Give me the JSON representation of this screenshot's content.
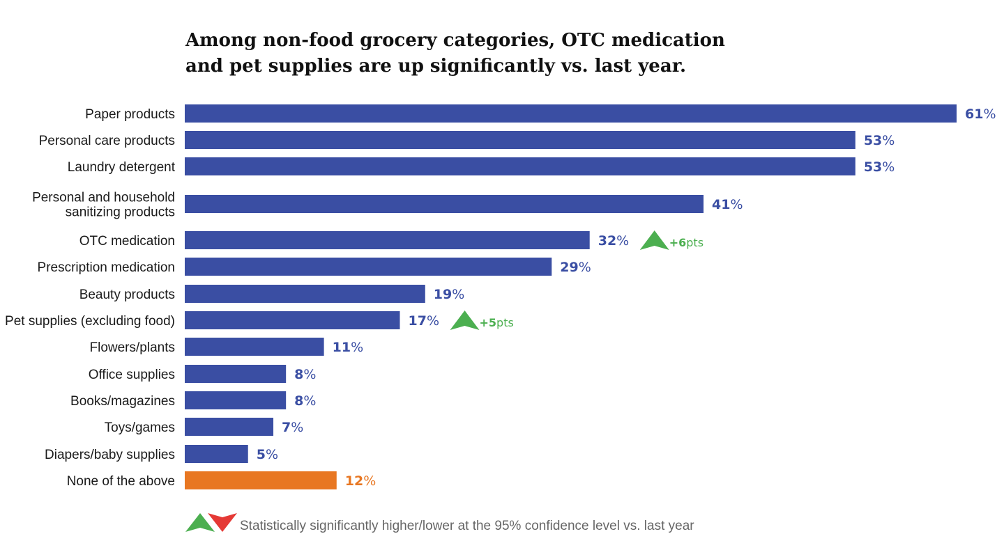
{
  "chart_data": {
    "type": "bar",
    "orientation": "horizontal",
    "title_lines": [
      "Among non-food grocery categories, OTC medication",
      "and pet supplies are up significantly vs. last year."
    ],
    "unit": "%",
    "xlim": [
      0,
      61
    ],
    "categories": [
      [
        "Paper products"
      ],
      [
        "Personal care products"
      ],
      [
        "Laundry detergent"
      ],
      [
        "Personal and household",
        "sanitizing products"
      ],
      [
        "OTC medication"
      ],
      [
        "Prescription medication"
      ],
      [
        "Beauty products"
      ],
      [
        "Pet supplies (excluding food)"
      ],
      [
        "Flowers/plants"
      ],
      [
        "Office supplies"
      ],
      [
        "Books/magazines"
      ],
      [
        "Toys/games"
      ],
      [
        "Diapers/baby supplies"
      ],
      [
        "None of the above"
      ]
    ],
    "values": [
      61,
      53,
      53,
      41,
      32,
      29,
      19,
      17,
      11,
      8,
      8,
      7,
      5,
      12
    ],
    "highlight_index": 13,
    "colors": {
      "bar": "#3a4ea3",
      "highlight": "#e87722",
      "up": "#4caf50",
      "down": "#e53935"
    },
    "changes": [
      {
        "index": 4,
        "direction": "up",
        "value": "+6",
        "unit": "pts"
      },
      {
        "index": 7,
        "direction": "up",
        "value": "+5",
        "unit": "pts"
      }
    ],
    "legend": "Statistically significantly higher/lower at the 95% confidence level vs. last year"
  }
}
